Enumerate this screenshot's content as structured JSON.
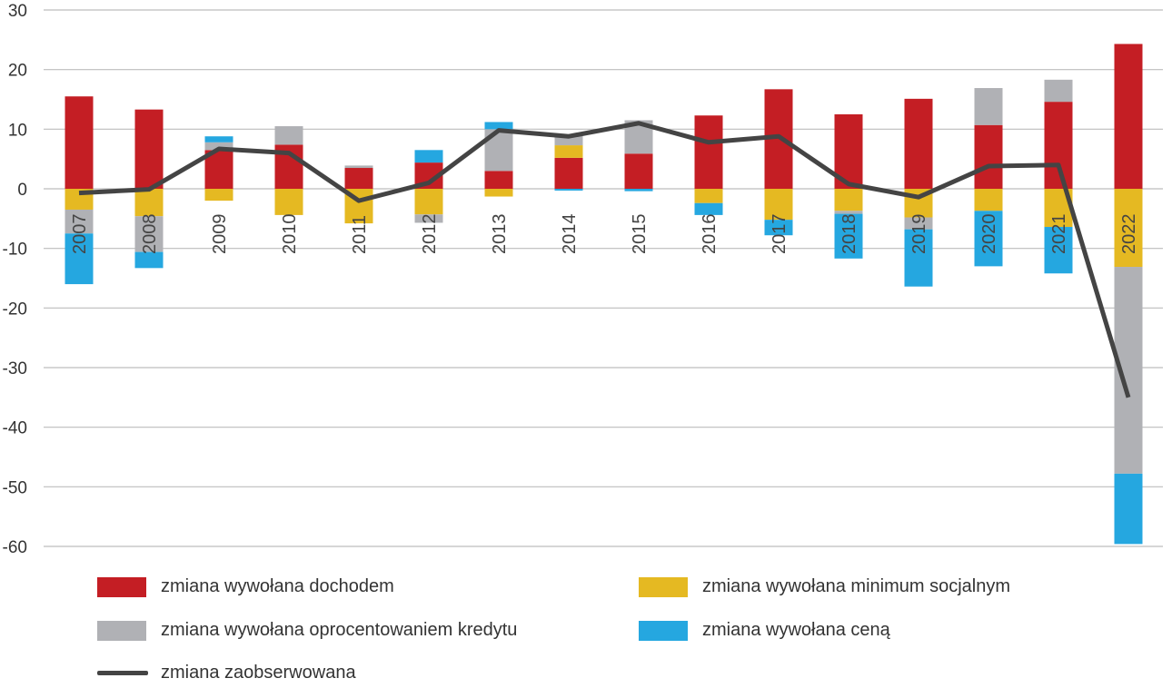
{
  "chart_data": {
    "type": "bar",
    "stacked": true,
    "title": "",
    "xlabel": "",
    "ylabel": "",
    "ylim": [
      -60,
      30
    ],
    "yticks": [
      "30",
      "20",
      "10",
      "0",
      "-10",
      "-20",
      "-30",
      "-40",
      "-50",
      "-60"
    ],
    "grid": true,
    "legend_position": "bottom",
    "categories": [
      "2007",
      "2008",
      "2009",
      "2010",
      "2011",
      "2012",
      "2013",
      "2014",
      "2015",
      "2016",
      "2017",
      "2018",
      "2019",
      "2020",
      "2021",
      "2022"
    ],
    "series": [
      {
        "name": "zmiana wywołana dochodem",
        "color": "#c41e24",
        "values": [
          15.5,
          13.3,
          6.5,
          7.4,
          3.5,
          4.4,
          3.0,
          5.2,
          5.9,
          12.3,
          16.7,
          12.5,
          15.1,
          10.7,
          14.6,
          24.3
        ]
      },
      {
        "name": "zmiana wywołana minimum socjalnym",
        "color": "#e5b922",
        "values": [
          -3.5,
          -4.6,
          -2.0,
          -4.4,
          -5.8,
          -4.3,
          -1.3,
          2.1,
          0,
          -2.4,
          -5.2,
          -3.7,
          -4.8,
          -3.7,
          -6.4,
          -13.1
        ]
      },
      {
        "name": "zmiana wywołana oprocentowaniem kredytu",
        "color": "#b0b1b5",
        "values": [
          -4.0,
          -6.0,
          1.3,
          3.1,
          0.4,
          -1.4,
          7.0,
          1.8,
          5.6,
          0,
          0,
          -0.5,
          -2.0,
          6.2,
          3.7,
          -34.7
        ]
      },
      {
        "name": "zmiana wywołana ceną",
        "color": "#25a7e0",
        "values": [
          -8.5,
          -2.7,
          1.0,
          0,
          0,
          2.1,
          1.2,
          -0.3,
          -0.4,
          -2.0,
          -2.6,
          -7.5,
          -9.6,
          -9.3,
          -7.8,
          -11.8
        ]
      }
    ],
    "line": {
      "name": "zmiana zaobserwowana",
      "color": "#444444",
      "values": [
        -0.7,
        -0.1,
        6.7,
        6.0,
        -2.0,
        1.0,
        9.8,
        8.8,
        11.0,
        7.8,
        8.8,
        0.8,
        -1.4,
        3.8,
        4.0,
        -35.0
      ]
    }
  }
}
